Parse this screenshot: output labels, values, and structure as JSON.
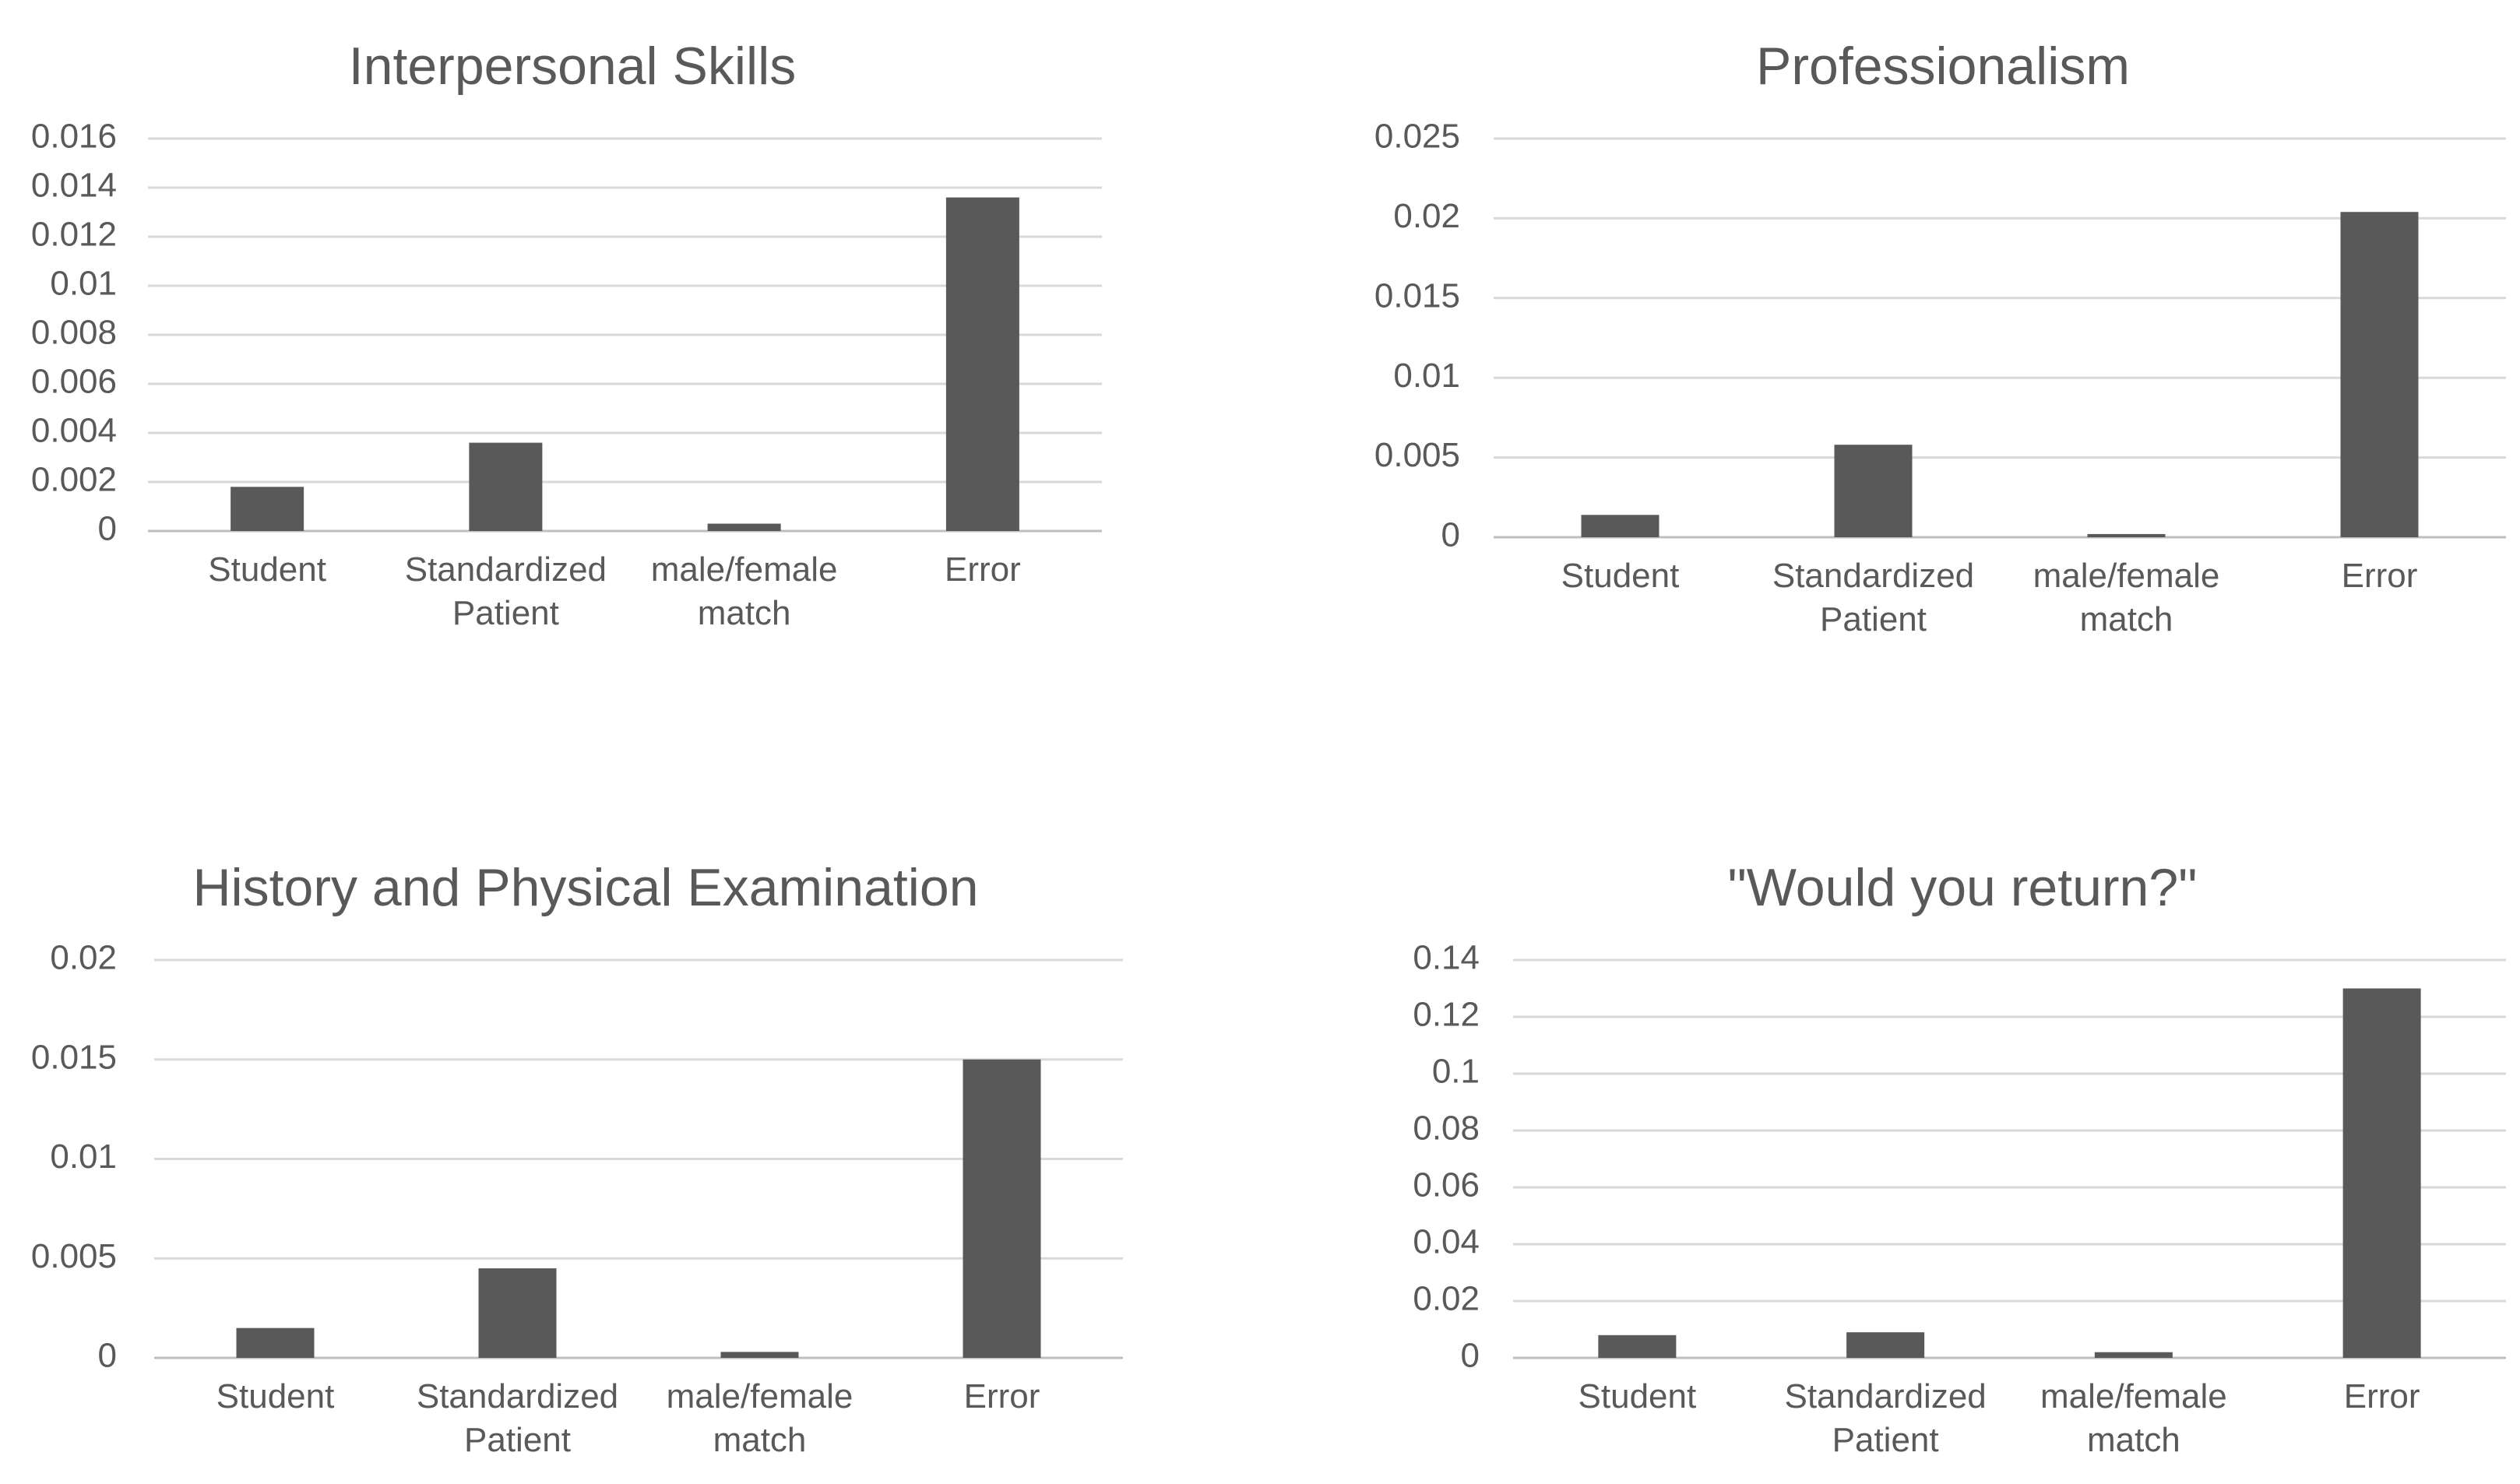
{
  "chart_data": [
    {
      "type": "bar",
      "title": "Interpersonal Skills",
      "categories": [
        [
          "Student"
        ],
        [
          "Standardized",
          "Patient"
        ],
        [
          "male/female",
          "match"
        ],
        [
          "Error"
        ]
      ],
      "values": [
        0.0018,
        0.0036,
        0.0003,
        0.0136
      ],
      "ylim": [
        0,
        0.016
      ],
      "yticks": [
        "0",
        "0.002",
        "0.004",
        "0.006",
        "0.008",
        "0.01",
        "0.012",
        "0.014",
        "0.016"
      ],
      "grid": true,
      "bar_color": "#595959"
    },
    {
      "type": "bar",
      "title": "Professionalism",
      "categories": [
        [
          "Student"
        ],
        [
          "Standardized",
          "Patient"
        ],
        [
          "male/female",
          "match"
        ],
        [
          "Error"
        ]
      ],
      "values": [
        0.0014,
        0.0058,
        0.0002,
        0.0204
      ],
      "ylim": [
        0,
        0.025
      ],
      "yticks": [
        "0",
        "0.005",
        "0.01",
        "0.015",
        "0.02",
        "0.025"
      ],
      "grid": true,
      "bar_color": "#595959"
    },
    {
      "type": "bar",
      "title": "History and Physical Examination",
      "categories": [
        [
          "Student"
        ],
        [
          "Standardized",
          "Patient"
        ],
        [
          "male/female",
          "match"
        ],
        [
          "Error"
        ]
      ],
      "values": [
        0.0015,
        0.0045,
        0.0003,
        0.015
      ],
      "ylim": [
        0,
        0.02
      ],
      "yticks": [
        "0",
        "0.005",
        "0.01",
        "0.015",
        "0.02"
      ],
      "grid": true,
      "bar_color": "#595959"
    },
    {
      "type": "bar",
      "title": "\"Would you return?\"",
      "categories": [
        [
          "Student"
        ],
        [
          "Standardized",
          "Patient"
        ],
        [
          "male/female",
          "match"
        ],
        [
          "Error"
        ]
      ],
      "values": [
        0.008,
        0.009,
        0.002,
        0.13
      ],
      "ylim": [
        0,
        0.14
      ],
      "yticks": [
        "0",
        "0.02",
        "0.04",
        "0.06",
        "0.08",
        "0.1",
        "0.12",
        "0.14"
      ],
      "grid": true,
      "bar_color": "#595959"
    }
  ]
}
